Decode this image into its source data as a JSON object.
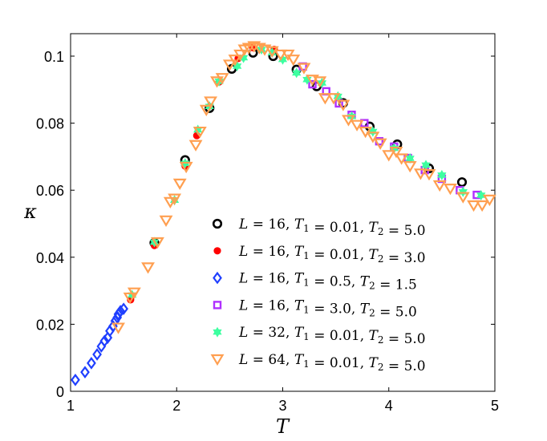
{
  "chart_data": {
    "type": "scatter",
    "xlabel": "T",
    "ylabel": "κ",
    "xlim": [
      1,
      5
    ],
    "ylim": [
      0,
      0.1067
    ],
    "xticks": [
      "1",
      "2",
      "3",
      "4",
      "5"
    ],
    "xtick_values": [
      1,
      2,
      3,
      4,
      5
    ],
    "yticks": [
      "0",
      "0.02",
      "0.04",
      "0.06",
      "0.08",
      "0.1"
    ],
    "ytick_values": [
      0,
      0.02,
      0.04,
      0.06,
      0.08,
      0.1
    ],
    "grid": false,
    "legend_position": "lower-right",
    "series": [
      {
        "name": "L = 16, T1 = 0.01, T2 = 5.0",
        "L": "16",
        "T1": "0.01",
        "T2": "5.0",
        "marker": "open-circle",
        "color": "#000000",
        "x": [
          1.79,
          2.08,
          2.31,
          2.52,
          2.72,
          2.91,
          3.13,
          3.32,
          3.57,
          3.82,
          4.08,
          4.38,
          4.69
        ],
        "y": [
          0.0443,
          0.069,
          0.0845,
          0.0962,
          0.101,
          0.1,
          0.096,
          0.091,
          0.086,
          0.079,
          0.0737,
          0.0665,
          0.0624
        ]
      },
      {
        "name": "L = 16, T1 = 0.01, T2 = 3.0",
        "L": "16",
        "T1": "0.01",
        "T2": "3.0",
        "marker": "filled-circle",
        "color": "#ff0000",
        "x": [
          1.566,
          1.79,
          2.08,
          2.19,
          2.4,
          2.58,
          2.72,
          2.92
        ],
        "y": [
          0.0273,
          0.0435,
          0.0672,
          0.0763,
          0.0923,
          0.0993,
          0.1025,
          0.102
        ]
      },
      {
        "name": "L = 16, T1 = 0.5, T2 = 1.5",
        "L": "16",
        "T1": "0.5",
        "T2": "1.5",
        "marker": "open-diamond",
        "color": "#1f3fff",
        "x": [
          1.045,
          1.136,
          1.196,
          1.25,
          1.29,
          1.32,
          1.35,
          1.37,
          1.4,
          1.42,
          1.44,
          1.45,
          1.47,
          1.5
        ],
        "y": [
          0.0034,
          0.0057,
          0.0084,
          0.011,
          0.0134,
          0.015,
          0.016,
          0.018,
          0.0194,
          0.021,
          0.022,
          0.023,
          0.0239,
          0.0246
        ]
      },
      {
        "name": "L = 16, T1 = 3.0, T2 = 5.0",
        "L": "16",
        "T1": "3.0",
        "T2": "5.0",
        "marker": "open-square",
        "color": "#b030ff",
        "x": [
          3.19,
          3.28,
          3.41,
          3.53,
          3.65,
          3.77,
          3.91,
          4.05,
          4.18,
          4.34,
          4.5,
          4.67,
          4.83
        ],
        "y": [
          0.0969,
          0.0916,
          0.0895,
          0.0859,
          0.0825,
          0.08,
          0.0746,
          0.073,
          0.0696,
          0.066,
          0.0634,
          0.06,
          0.0586
        ]
      },
      {
        "name": "L = 32, T1 = 0.01, T2 = 5.0",
        "L": "32",
        "T1": "0.01",
        "T2": "5.0",
        "marker": "filled-hexagram",
        "color": "#3dffa0",
        "x": [
          1.58,
          1.79,
          1.98,
          2.08,
          2.2,
          2.31,
          2.4,
          2.57,
          2.63,
          2.8,
          2.9,
          3.0,
          3.13,
          3.23,
          3.37,
          3.52,
          3.65,
          3.85,
          4.05,
          4.2,
          4.35,
          4.5,
          4.7,
          4.87
        ],
        "y": [
          0.0287,
          0.0445,
          0.057,
          0.068,
          0.078,
          0.085,
          0.0925,
          0.097,
          0.0995,
          0.102,
          0.101,
          0.099,
          0.095,
          0.093,
          0.092,
          0.088,
          0.082,
          0.0775,
          0.0725,
          0.0695,
          0.0675,
          0.0645,
          0.0595,
          0.0585
        ]
      },
      {
        "name": "L = 64, T1 = 0.01, T2 = 5.0",
        "L": "64",
        "T1": "0.01",
        "T2": "5.0",
        "marker": "open-triangle-down",
        "color": "#ff9f50",
        "x": [
          1.45,
          1.56,
          1.6,
          1.73,
          1.82,
          1.9,
          1.94,
          1.98,
          2.03,
          2.09,
          2.18,
          2.22,
          2.28,
          2.32,
          2.38,
          2.43,
          2.5,
          2.55,
          2.6,
          2.64,
          2.68,
          2.73,
          2.78,
          2.83,
          2.9,
          2.98,
          3.05,
          3.1,
          3.2,
          3.28,
          3.35,
          3.4,
          3.48,
          3.57,
          3.62,
          3.7,
          3.78,
          3.85,
          3.92,
          4.0,
          4.07,
          4.12,
          4.2,
          4.3,
          4.38,
          4.48,
          4.58,
          4.7,
          4.8,
          4.88,
          4.95
        ],
        "y": [
          0.019,
          0.028,
          0.0295,
          0.037,
          0.0445,
          0.051,
          0.0565,
          0.0575,
          0.062,
          0.067,
          0.0735,
          0.0775,
          0.084,
          0.0865,
          0.0925,
          0.0935,
          0.0975,
          0.099,
          0.1005,
          0.102,
          0.1025,
          0.103,
          0.1025,
          0.102,
          0.1015,
          0.1005,
          0.1005,
          0.099,
          0.0965,
          0.093,
          0.0925,
          0.0875,
          0.0875,
          0.0855,
          0.081,
          0.0795,
          0.0775,
          0.076,
          0.074,
          0.0705,
          0.0715,
          0.0695,
          0.0672,
          0.065,
          0.0648,
          0.0615,
          0.0605,
          0.058,
          0.0555,
          0.0555,
          0.0572
        ]
      }
    ]
  }
}
